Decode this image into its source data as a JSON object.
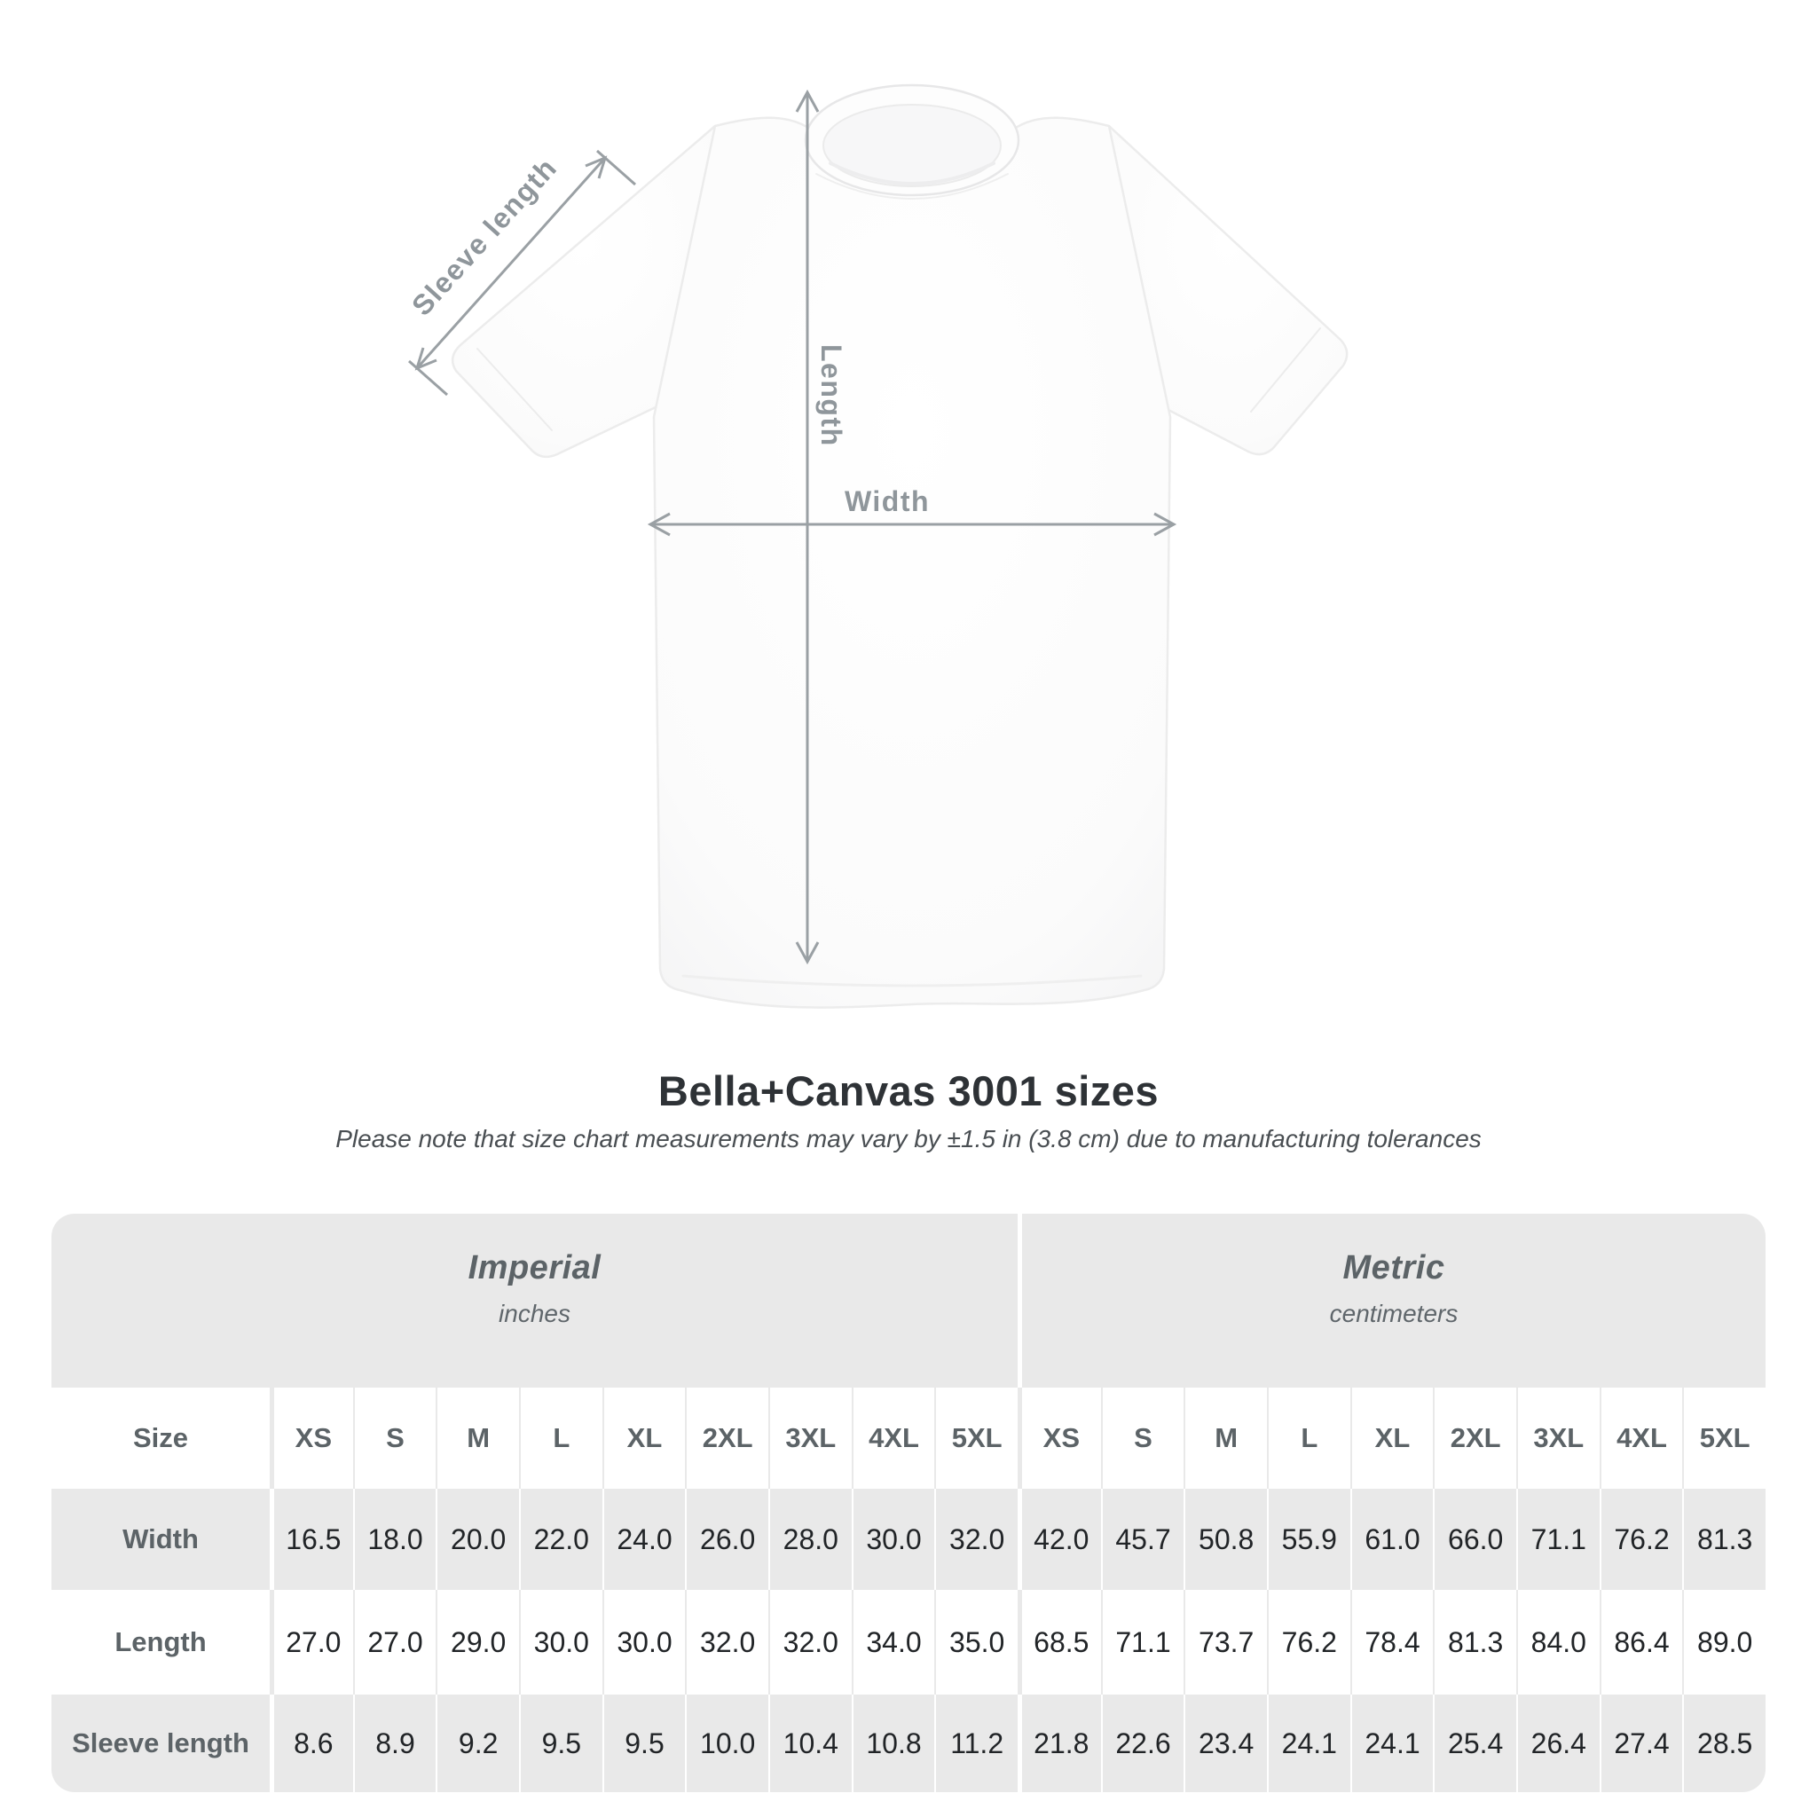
{
  "heading": {
    "title": "Bella+Canvas 3001 sizes",
    "subtitle": "Please note that size chart measurements may vary by ±1.5 in (3.8 cm) due to manufacturing tolerances"
  },
  "diagram": {
    "labels": {
      "sleeve_length": "Sleeve length",
      "length": "Length",
      "width": "Width"
    },
    "line_color": "#9aa0a4",
    "label_color": "#8f969b"
  },
  "size_table": {
    "groups": [
      {
        "name": "Imperial",
        "unit": "inches"
      },
      {
        "name": "Metric",
        "unit": "centimeters"
      }
    ],
    "size_header": "Size",
    "sizes": [
      "XS",
      "S",
      "M",
      "L",
      "XL",
      "2XL",
      "3XL",
      "4XL",
      "5XL"
    ],
    "rows": [
      {
        "label": "Width",
        "imperial": [
          "16.5",
          "18.0",
          "20.0",
          "22.0",
          "24.0",
          "26.0",
          "28.0",
          "30.0",
          "32.0"
        ],
        "metric": [
          "42.0",
          "45.7",
          "50.8",
          "55.9",
          "61.0",
          "66.0",
          "71.1",
          "76.2",
          "81.3"
        ]
      },
      {
        "label": "Length",
        "imperial": [
          "27.0",
          "27.0",
          "29.0",
          "30.0",
          "30.0",
          "32.0",
          "32.0",
          "34.0",
          "35.0"
        ],
        "metric": [
          "68.5",
          "71.1",
          "73.7",
          "76.2",
          "78.4",
          "81.3",
          "84.0",
          "86.4",
          "89.0"
        ]
      },
      {
        "label": "Sleeve length",
        "imperial": [
          "8.6",
          "8.9",
          "9.2",
          "9.5",
          "9.5",
          "10.0",
          "10.4",
          "10.8",
          "11.2"
        ],
        "metric": [
          "21.8",
          "22.6",
          "23.4",
          "24.1",
          "24.1",
          "25.4",
          "26.4",
          "27.4",
          "28.5"
        ]
      }
    ],
    "colors": {
      "band": "#e9e9e9",
      "value_text": "#212427",
      "header_text": "#5c6367"
    }
  },
  "chart_data": {
    "type": "table",
    "title": "Bella+Canvas 3001 sizes",
    "note": "Please note that size chart measurements may vary by ±1.5 in (3.8 cm) due to manufacturing tolerances",
    "column_groups": [
      {
        "name": "Imperial",
        "unit": "inches"
      },
      {
        "name": "Metric",
        "unit": "centimeters"
      }
    ],
    "sizes": [
      "XS",
      "S",
      "M",
      "L",
      "XL",
      "2XL",
      "3XL",
      "4XL",
      "5XL"
    ],
    "rows": [
      {
        "measurement": "Width",
        "imperial_in": [
          16.5,
          18.0,
          20.0,
          22.0,
          24.0,
          26.0,
          28.0,
          30.0,
          32.0
        ],
        "metric_cm": [
          42.0,
          45.7,
          50.8,
          55.9,
          61.0,
          66.0,
          71.1,
          76.2,
          81.3
        ]
      },
      {
        "measurement": "Length",
        "imperial_in": [
          27.0,
          27.0,
          29.0,
          30.0,
          30.0,
          32.0,
          32.0,
          34.0,
          35.0
        ],
        "metric_cm": [
          68.5,
          71.1,
          73.7,
          76.2,
          78.4,
          81.3,
          84.0,
          86.4,
          89.0
        ]
      },
      {
        "measurement": "Sleeve length",
        "imperial_in": [
          8.6,
          8.9,
          9.2,
          9.5,
          9.5,
          10.0,
          10.4,
          10.8,
          11.2
        ],
        "metric_cm": [
          21.8,
          22.6,
          23.4,
          24.1,
          24.1,
          25.4,
          26.4,
          27.4,
          28.5
        ]
      }
    ]
  }
}
